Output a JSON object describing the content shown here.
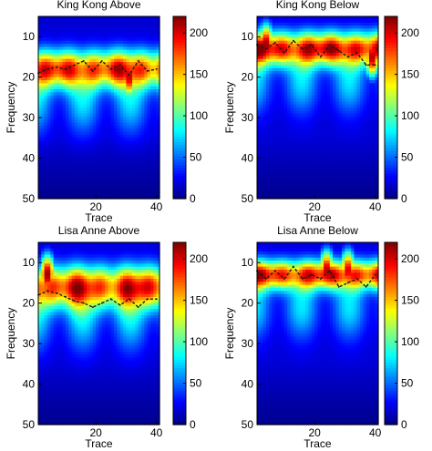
{
  "chart_data": [
    {
      "type": "heatmap",
      "title": "King Kong Above",
      "xlabel": "Trace",
      "ylabel": "Frequency",
      "xlim": [
        1,
        41
      ],
      "ylim": [
        50,
        5
      ],
      "x_ticks": [
        20,
        40
      ],
      "y_ticks": [
        10,
        20,
        30,
        40,
        50
      ],
      "colorbar": {
        "range": [
          0,
          220
        ],
        "ticks": [
          0,
          50,
          100,
          150,
          200
        ]
      },
      "band": {
        "center": 18,
        "width": 4.5,
        "peak": 200,
        "hotspots": [
          {
            "x": 31,
            "y": 20,
            "value": 210
          }
        ]
      },
      "dashed_line": {
        "x": [
          1,
          4,
          7,
          10,
          13,
          16,
          19,
          22,
          25,
          28,
          31,
          34,
          37,
          40
        ],
        "y": [
          19,
          18,
          17.5,
          18,
          17,
          16,
          18.5,
          16,
          18,
          17,
          19.5,
          16,
          18.5,
          18
        ]
      }
    },
    {
      "type": "heatmap",
      "title": "King Kong Below",
      "xlabel": "Trace",
      "ylabel": "Frequency",
      "xlim": [
        1,
        41
      ],
      "ylim": [
        50,
        5
      ],
      "x_ticks": [
        20,
        40
      ],
      "y_ticks": [
        10,
        20,
        30,
        40,
        50
      ],
      "colorbar": {
        "range": [
          0,
          220
        ],
        "ticks": [
          0,
          50,
          100,
          150,
          200
        ]
      },
      "band": {
        "center": 13,
        "width": 4,
        "peak": 215,
        "hotspots": [
          {
            "x": 4,
            "y": 12,
            "value": 220
          },
          {
            "x": 39,
            "y": 15,
            "value": 215
          }
        ]
      },
      "dashed_line": {
        "x": [
          1,
          4,
          7,
          10,
          13,
          16,
          19,
          22,
          25,
          28,
          31,
          34,
          37,
          40
        ],
        "y": [
          12,
          13,
          11.5,
          14,
          11,
          13,
          12,
          15,
          12,
          13.5,
          15,
          14,
          17,
          17
        ]
      }
    },
    {
      "type": "heatmap",
      "title": "Lisa Anne Above",
      "xlabel": "Trace",
      "ylabel": "Frequency",
      "xlim": [
        1,
        41
      ],
      "ylim": [
        50,
        5
      ],
      "x_ticks": [
        20,
        40
      ],
      "y_ticks": [
        10,
        20,
        30,
        40,
        50
      ],
      "colorbar": {
        "range": [
          0,
          220
        ],
        "ticks": [
          0,
          50,
          100,
          150,
          200
        ]
      },
      "band": {
        "center": 16,
        "width": 5,
        "peak": 205,
        "hotspots": [
          {
            "x": 4,
            "y": 13,
            "value": 220
          }
        ]
      },
      "dashed_line": {
        "x": [
          1,
          4,
          7,
          10,
          13,
          16,
          19,
          22,
          25,
          28,
          31,
          34,
          37,
          40
        ],
        "y": [
          18,
          17,
          17.5,
          18.5,
          19.5,
          20,
          21,
          20,
          19,
          20.5,
          19,
          21,
          19,
          19
        ]
      }
    },
    {
      "type": "heatmap",
      "title": "Lisa Anne Below",
      "xlabel": "Trace",
      "ylabel": "Frequency",
      "xlim": [
        1,
        41
      ],
      "ylim": [
        50,
        5
      ],
      "x_ticks": [
        20,
        40
      ],
      "y_ticks": [
        10,
        20,
        30,
        40,
        50
      ],
      "colorbar": {
        "range": [
          0,
          220
        ],
        "ticks": [
          0,
          50,
          100,
          150,
          200
        ]
      },
      "band": {
        "center": 13,
        "width": 3.5,
        "peak": 205,
        "hotspots": [
          {
            "x": 24,
            "y": 12,
            "value": 215
          },
          {
            "x": 31,
            "y": 12,
            "value": 205
          }
        ]
      },
      "dashed_line": {
        "x": [
          1,
          4,
          7,
          10,
          13,
          16,
          19,
          22,
          25,
          28,
          31,
          34,
          37,
          40
        ],
        "y": [
          12,
          14,
          12,
          14,
          11,
          14,
          13,
          14,
          12,
          16,
          15,
          14,
          16,
          13
        ]
      }
    }
  ]
}
